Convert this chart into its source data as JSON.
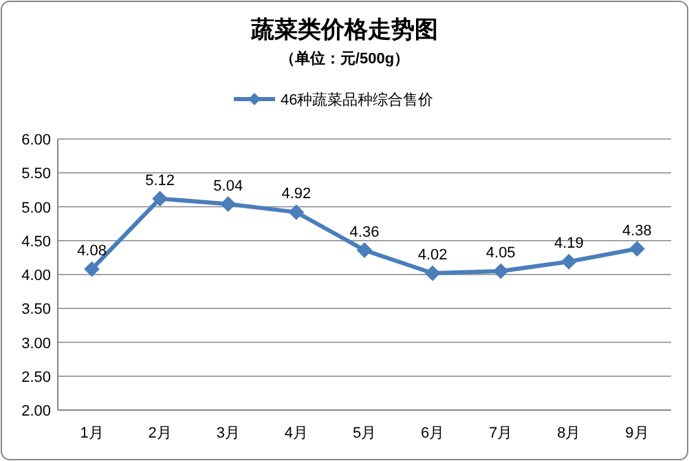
{
  "chart_data": {
    "type": "line",
    "title": "蔬菜类价格走势图",
    "subtitle": "（单位：元/500g）",
    "categories": [
      "1月",
      "2月",
      "3月",
      "4月",
      "5月",
      "6月",
      "7月",
      "8月",
      "9月"
    ],
    "series": [
      {
        "name": "46种蔬菜品种综合售价",
        "color": "#4a7ebb",
        "values": [
          4.08,
          5.12,
          5.04,
          4.92,
          4.36,
          4.02,
          4.05,
          4.19,
          4.38
        ]
      }
    ],
    "ylim": [
      2,
      6
    ],
    "yticks": [
      {
        "value": 2,
        "label": "2.00"
      },
      {
        "value": 2.5,
        "label": "2.50"
      },
      {
        "value": 3,
        "label": "3.00"
      },
      {
        "value": 3.5,
        "label": "3.50"
      },
      {
        "value": 4,
        "label": "4.00"
      },
      {
        "value": 4.5,
        "label": "4.50"
      },
      {
        "value": 5,
        "label": "5.00"
      },
      {
        "value": 5.5,
        "label": "5.50"
      },
      {
        "value": 6,
        "label": "6.00"
      }
    ],
    "grid": "y",
    "legend": "top",
    "marker": "diamond",
    "line_style": "solid",
    "data_labels": true
  }
}
